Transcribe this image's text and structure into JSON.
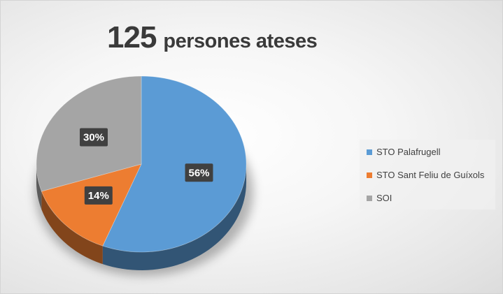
{
  "title": {
    "number": "125",
    "text": "persones ateses"
  },
  "chart_data": {
    "type": "pie",
    "title": "125 persones ateses",
    "categories": [
      "STO Palafrugell",
      "STO Sant Feliu de Guíxols",
      "SOI"
    ],
    "values": [
      56,
      14,
      30
    ],
    "labels": [
      "56%",
      "14%",
      "30%"
    ],
    "colors": [
      "#5b9bd5",
      "#ed7d31",
      "#a5a5a5"
    ],
    "legend_position": "right"
  }
}
